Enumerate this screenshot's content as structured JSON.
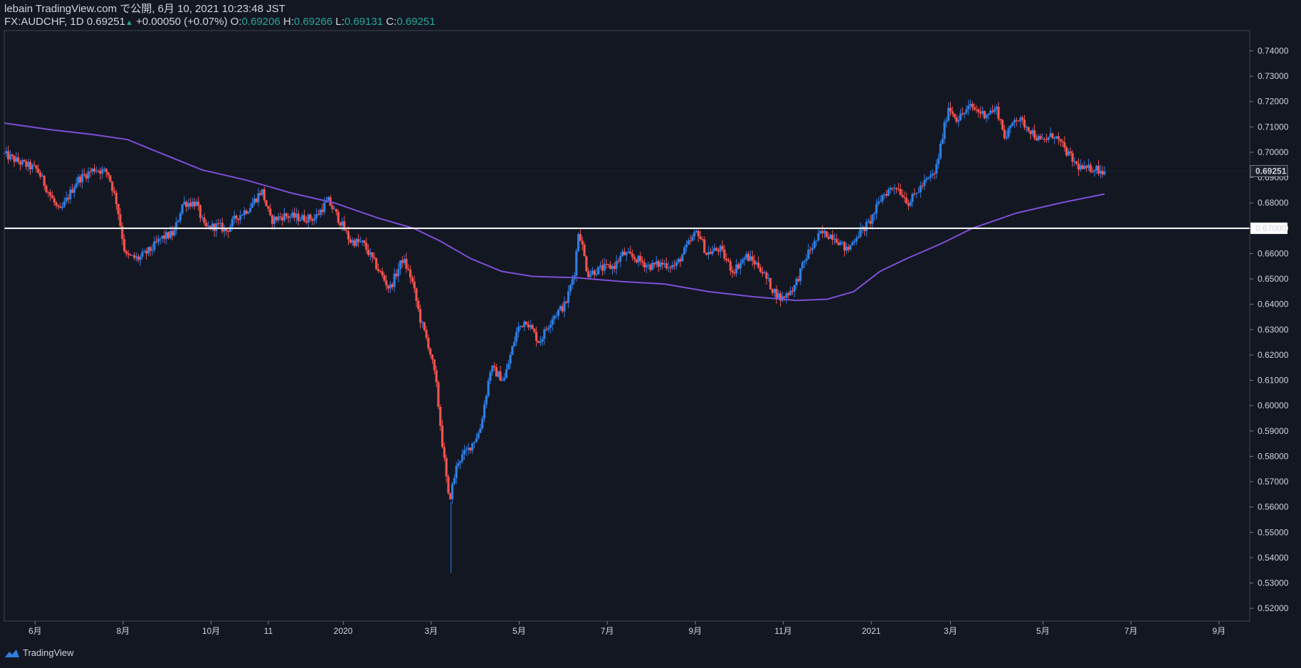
{
  "header": {
    "published": "lebain TradingView.com で公開, 6月 10, 2021 10:23:48 JST",
    "symbol": "FX:AUDCHF, 1D",
    "last": "0.69251",
    "change_arrow": "▲",
    "change": "+0.00050 (+0.07%)",
    "o_label": "O:",
    "o_value": "0.69206",
    "h_label": "H:",
    "h_value": "0.69266",
    "l_label": "L:",
    "l_value": "0.69131",
    "c_label": "C:",
    "c_value": "0.69251"
  },
  "footer": {
    "brand": "TradingView",
    "logo_icon": "tradingview-logo-icon"
  },
  "colors": {
    "background": "#131722",
    "up": "#2f7de1",
    "down": "#ef5350",
    "ma": "#7b4fd6",
    "level": "#ffffff",
    "text": "#d1d4dc",
    "green": "#26a69a"
  },
  "chart_data": {
    "type": "candlestick",
    "title": "FX:AUDCHF, 1D",
    "ylim": [
      0.515,
      0.748
    ],
    "y_ticks": [
      "0.74000",
      "0.73000",
      "0.72000",
      "0.71000",
      "0.70000",
      "0.69000",
      "0.68000",
      "0.67000",
      "0.66000",
      "0.65000",
      "0.64000",
      "0.63000",
      "0.62000",
      "0.61000",
      "0.60000",
      "0.59000",
      "0.58000",
      "0.57000",
      "0.56000",
      "0.55000",
      "0.54000",
      "0.53000",
      "0.52000"
    ],
    "x_ticks": [
      {
        "label": "6月",
        "t": 0.7
      },
      {
        "label": "8月",
        "t": 2.7
      },
      {
        "label": "10月",
        "t": 4.7
      },
      {
        "label": "11",
        "t": 6.0
      },
      {
        "label": "2020",
        "t": 7.7
      },
      {
        "label": "3月",
        "t": 9.7
      },
      {
        "label": "5月",
        "t": 11.7
      },
      {
        "label": "7月",
        "t": 13.7
      },
      {
        "label": "9月",
        "t": 15.7
      },
      {
        "label": "11月",
        "t": 17.7
      },
      {
        "label": "2021",
        "t": 19.7
      },
      {
        "label": "3月",
        "t": 21.5
      },
      {
        "label": "5月",
        "t": 23.6
      },
      {
        "label": "7月",
        "t": 25.6
      },
      {
        "label": "9月",
        "t": 27.6
      }
    ],
    "t_range": [
      0,
      28.3
    ],
    "price_path": [
      [
        0.0,
        0.6995
      ],
      [
        0.4,
        0.696
      ],
      [
        0.8,
        0.693
      ],
      [
        1.0,
        0.686
      ],
      [
        1.3,
        0.676
      ],
      [
        1.7,
        0.689
      ],
      [
        2.1,
        0.6935
      ],
      [
        2.4,
        0.692
      ],
      [
        2.6,
        0.68
      ],
      [
        2.8,
        0.659
      ],
      [
        3.1,
        0.658
      ],
      [
        3.4,
        0.662
      ],
      [
        3.6,
        0.666
      ],
      [
        3.9,
        0.668
      ],
      [
        4.1,
        0.68
      ],
      [
        4.4,
        0.68
      ],
      [
        4.6,
        0.67
      ],
      [
        4.9,
        0.671
      ],
      [
        5.1,
        0.669
      ],
      [
        5.3,
        0.674
      ],
      [
        5.6,
        0.678
      ],
      [
        5.9,
        0.685
      ],
      [
        6.1,
        0.673
      ],
      [
        6.4,
        0.675
      ],
      [
        6.8,
        0.674
      ],
      [
        7.1,
        0.674
      ],
      [
        7.4,
        0.681
      ],
      [
        7.7,
        0.672
      ],
      [
        7.9,
        0.665
      ],
      [
        8.2,
        0.664
      ],
      [
        8.5,
        0.655
      ],
      [
        8.8,
        0.646
      ],
      [
        9.1,
        0.658
      ],
      [
        9.3,
        0.65
      ],
      [
        9.5,
        0.634
      ],
      [
        9.7,
        0.623
      ],
      [
        9.85,
        0.61
      ],
      [
        10.0,
        0.585
      ],
      [
        10.15,
        0.562
      ],
      [
        10.35,
        0.578
      ],
      [
        10.6,
        0.583
      ],
      [
        10.85,
        0.59
      ],
      [
        11.1,
        0.615
      ],
      [
        11.4,
        0.61
      ],
      [
        11.7,
        0.63
      ],
      [
        11.9,
        0.634
      ],
      [
        12.2,
        0.625
      ],
      [
        12.5,
        0.635
      ],
      [
        12.8,
        0.64
      ],
      [
        13.0,
        0.653
      ],
      [
        13.1,
        0.67
      ],
      [
        13.3,
        0.652
      ],
      [
        13.6,
        0.654
      ],
      [
        13.9,
        0.655
      ],
      [
        14.1,
        0.66
      ],
      [
        14.4,
        0.658
      ],
      [
        14.7,
        0.655
      ],
      [
        15.0,
        0.656
      ],
      [
        15.3,
        0.655
      ],
      [
        15.6,
        0.664
      ],
      [
        15.8,
        0.669
      ],
      [
        16.0,
        0.66
      ],
      [
        16.3,
        0.662
      ],
      [
        16.6,
        0.653
      ],
      [
        16.9,
        0.659
      ],
      [
        17.2,
        0.655
      ],
      [
        17.5,
        0.646
      ],
      [
        17.7,
        0.642
      ],
      [
        18.0,
        0.647
      ],
      [
        18.3,
        0.66
      ],
      [
        18.6,
        0.668
      ],
      [
        18.9,
        0.667
      ],
      [
        19.2,
        0.661
      ],
      [
        19.4,
        0.667
      ],
      [
        19.7,
        0.672
      ],
      [
        20.0,
        0.683
      ],
      [
        20.3,
        0.687
      ],
      [
        20.6,
        0.68
      ],
      [
        20.9,
        0.687
      ],
      [
        21.2,
        0.692
      ],
      [
        21.35,
        0.705
      ],
      [
        21.5,
        0.718
      ],
      [
        21.7,
        0.713
      ],
      [
        22.0,
        0.718
      ],
      [
        22.3,
        0.715
      ],
      [
        22.6,
        0.717
      ],
      [
        22.8,
        0.705
      ],
      [
        23.0,
        0.714
      ],
      [
        23.3,
        0.71
      ],
      [
        23.6,
        0.704
      ],
      [
        23.9,
        0.707
      ],
      [
        24.1,
        0.702
      ],
      [
        24.4,
        0.695
      ],
      [
        24.6,
        0.693
      ],
      [
        24.8,
        0.694
      ],
      [
        25.0,
        0.6925
      ]
    ],
    "series": [
      {
        "name": "Moving average",
        "type": "line",
        "points": [
          [
            0.0,
            0.7115
          ],
          [
            1.0,
            0.709
          ],
          [
            2.0,
            0.707
          ],
          [
            2.8,
            0.705
          ],
          [
            3.5,
            0.7
          ],
          [
            4.5,
            0.693
          ],
          [
            5.5,
            0.689
          ],
          [
            6.5,
            0.684
          ],
          [
            7.5,
            0.68
          ],
          [
            8.5,
            0.674
          ],
          [
            9.3,
            0.67
          ],
          [
            9.9,
            0.665
          ],
          [
            10.6,
            0.658
          ],
          [
            11.3,
            0.653
          ],
          [
            12.0,
            0.651
          ],
          [
            13.0,
            0.6505
          ],
          [
            14.0,
            0.649
          ],
          [
            15.0,
            0.648
          ],
          [
            16.0,
            0.645
          ],
          [
            17.0,
            0.643
          ],
          [
            18.0,
            0.6415
          ],
          [
            18.7,
            0.642
          ],
          [
            19.3,
            0.645
          ],
          [
            19.9,
            0.653
          ],
          [
            20.5,
            0.658
          ],
          [
            21.3,
            0.664
          ],
          [
            22.0,
            0.67
          ],
          [
            23.0,
            0.676
          ],
          [
            24.0,
            0.68
          ],
          [
            25.0,
            0.6835
          ]
        ]
      },
      {
        "name": "Horizontal level",
        "type": "hline",
        "value": 0.67
      }
    ],
    "last_price": "0.69251",
    "level_label": "0.67000",
    "candles": []
  }
}
